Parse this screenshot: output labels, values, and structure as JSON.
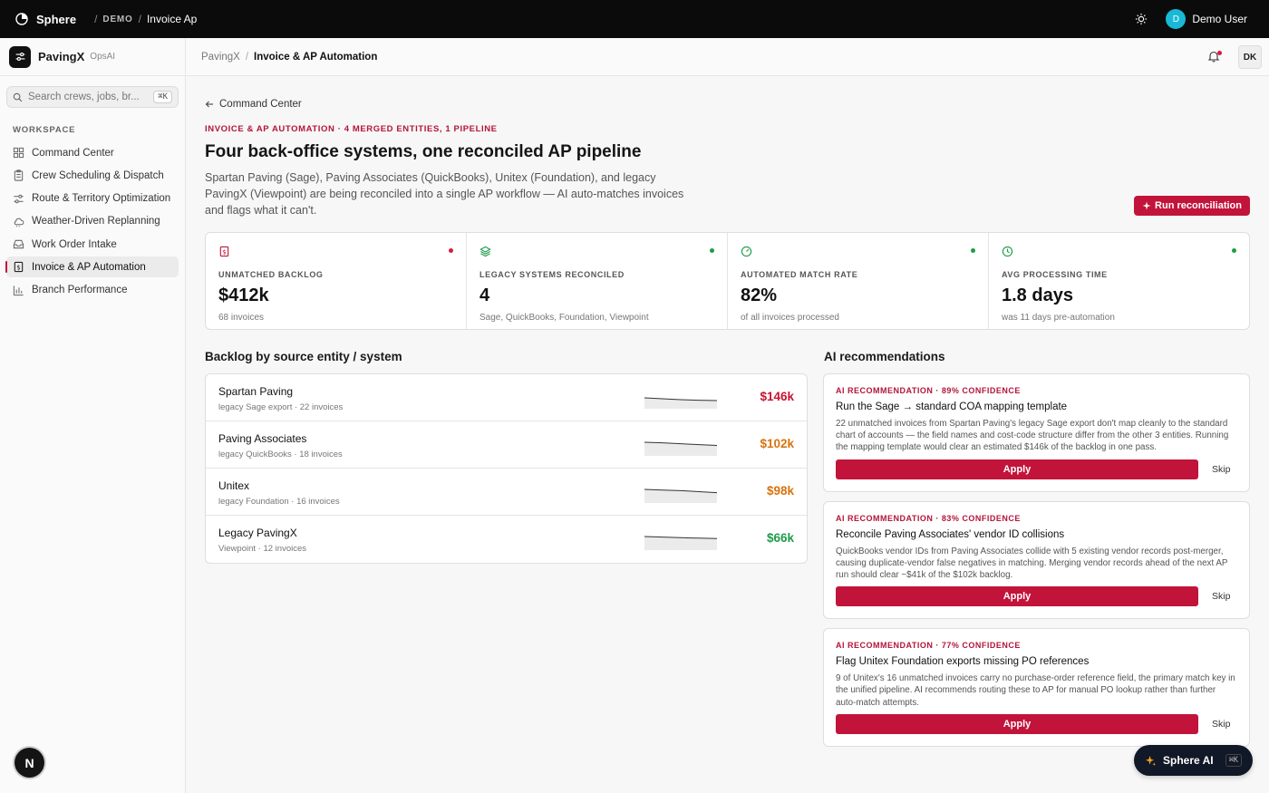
{
  "topbar": {
    "brand": "Sphere",
    "env": "DEMO",
    "page": "Invoice Ap",
    "user_initial": "D",
    "user_name": "Demo User"
  },
  "sidebar": {
    "app_name": "PavingX",
    "app_sub": "OpsAI",
    "search_placeholder": "Search crews, jobs, br...",
    "search_kbd": "⌘K",
    "section": "WORKSPACE",
    "items": [
      {
        "label": "Command Center",
        "icon": "grid-icon"
      },
      {
        "label": "Crew Scheduling & Dispatch",
        "icon": "clipboard-icon"
      },
      {
        "label": "Route & Territory Optimization",
        "icon": "route-icon"
      },
      {
        "label": "Weather-Driven Replanning",
        "icon": "cloud-icon"
      },
      {
        "label": "Work Order Intake",
        "icon": "inbox-icon"
      },
      {
        "label": "Invoice & AP Automation",
        "icon": "invoice-icon",
        "active": true
      },
      {
        "label": "Branch Performance",
        "icon": "bar-chart-icon"
      }
    ],
    "avatar_letter": "N"
  },
  "header": {
    "crumb_parent": "PavingX",
    "crumb_current": "Invoice & AP Automation",
    "user_initials": "DK"
  },
  "page": {
    "back_label": "Command Center",
    "eyebrow": "INVOICE & AP AUTOMATION · 4 MERGED ENTITIES, 1 PIPELINE",
    "title": "Four back-office systems, one reconciled AP pipeline",
    "description": "Spartan Paving (Sage), Paving Associates (QuickBooks), Unitex (Foundation), and legacy PavingX (Viewpoint) are being reconciled into a single AP workflow — AI auto-matches invoices and flags what it can't.",
    "run_button": "Run reconciliation"
  },
  "kpis": [
    {
      "label": "UNMATCHED BACKLOG",
      "value": "$412k",
      "sub": "68 invoices",
      "icon": "invoice-icon",
      "status": "#d81b3c"
    },
    {
      "label": "LEGACY SYSTEMS RECONCILED",
      "value": "4",
      "sub": "Sage, QuickBooks, Foundation, Viewpoint",
      "icon": "layers-icon",
      "status": "#1e9b4a"
    },
    {
      "label": "AUTOMATED MATCH RATE",
      "value": "82%",
      "sub": "of all invoices processed",
      "icon": "gauge-icon",
      "status": "#1e9b4a"
    },
    {
      "label": "AVG PROCESSING TIME",
      "value": "1.8 days",
      "sub": "was 11 days pre-automation",
      "icon": "clock-icon",
      "status": "#1e9b4a"
    }
  ],
  "backlog": {
    "heading": "Backlog by source entity / system",
    "rows": [
      {
        "name": "Spartan Paving",
        "sub": "legacy Sage export · 22 invoices",
        "value": "$146k",
        "color": "#c8142f",
        "trend": [
          10,
          11,
          12,
          12.6,
          13
        ]
      },
      {
        "name": "Paving Associates",
        "sub": "legacy QuickBooks · 18 invoices",
        "value": "$102k",
        "color": "#d9730d",
        "trend": [
          7,
          7.6,
          8.6,
          9.6,
          10.5
        ]
      },
      {
        "name": "Unitex",
        "sub": "legacy Foundation · 16 invoices",
        "value": "$98k",
        "color": "#d9730d",
        "trend": [
          7,
          7.8,
          8.4,
          9.5,
          10.6
        ]
      },
      {
        "name": "Legacy PavingX",
        "sub": "Viewpoint · 12 invoices",
        "value": "$66k",
        "color": "#1e9b4a",
        "trend": [
          7,
          7.6,
          8.3,
          8.8,
          9.3
        ]
      }
    ]
  },
  "recommendations": {
    "heading": "AI recommendations",
    "items": [
      {
        "tag": "AI RECOMMENDATION · 89% CONFIDENCE",
        "title": "Run the Sage → standard COA mapping template",
        "body": "22 unmatched invoices from Spartan Paving's legacy Sage export don't map cleanly to the standard chart of accounts — the field names and cost-code structure differ from the other 3 entities. Running the mapping template would clear an estimated $146k of the backlog in one pass.",
        "apply": "Apply",
        "skip": "Skip"
      },
      {
        "tag": "AI RECOMMENDATION · 83% CONFIDENCE",
        "title": "Reconcile Paving Associates' vendor ID collisions",
        "body": "QuickBooks vendor IDs from Paving Associates collide with 5 existing vendor records post-merger, causing duplicate-vendor false negatives in matching. Merging vendor records ahead of the next AP run should clear ~$41k of the $102k backlog.",
        "apply": "Apply",
        "skip": "Skip"
      },
      {
        "tag": "AI RECOMMENDATION · 77% CONFIDENCE",
        "title": "Flag Unitex Foundation exports missing PO references",
        "body": "9 of Unitex's 16 unmatched invoices carry no purchase-order reference field, the primary match key in the unified pipeline. AI recommends routing these to AP for manual PO lookup rather than further auto-match attempts.",
        "apply": "Apply",
        "skip": "Skip"
      }
    ]
  },
  "ai_pill": {
    "label": "Sphere AI",
    "kbd": "⌘K"
  }
}
